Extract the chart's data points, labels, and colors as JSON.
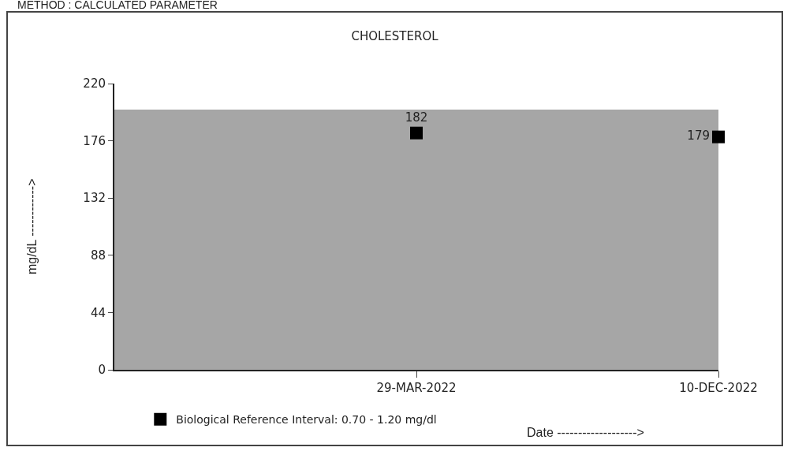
{
  "chart_data": {
    "type": "scatter",
    "title": "CHOLESTEROL",
    "xlabel": "Date ------------------->",
    "ylabel": "mg/dL ------------>",
    "annotations": [
      "METHOD : CALCULATED PARAMETER"
    ],
    "categories": [
      null,
      "29-MAR-2022",
      "10-DEC-2022"
    ],
    "series": [
      {
        "name": "Biological Reference Interval: 0.70 - 1.20 mg/dl",
        "color": "#000000",
        "values": [
          null,
          182,
          179
        ]
      }
    ],
    "bands": [
      {
        "axis": "y",
        "from": 0,
        "to": 200,
        "color": "#a6a6a6"
      }
    ],
    "ylim": [
      0,
      220
    ],
    "yticks": [
      0,
      44,
      88,
      132,
      176,
      220
    ],
    "grid": false,
    "legend": "bottom left",
    "marker": "square",
    "data_labels": true
  }
}
